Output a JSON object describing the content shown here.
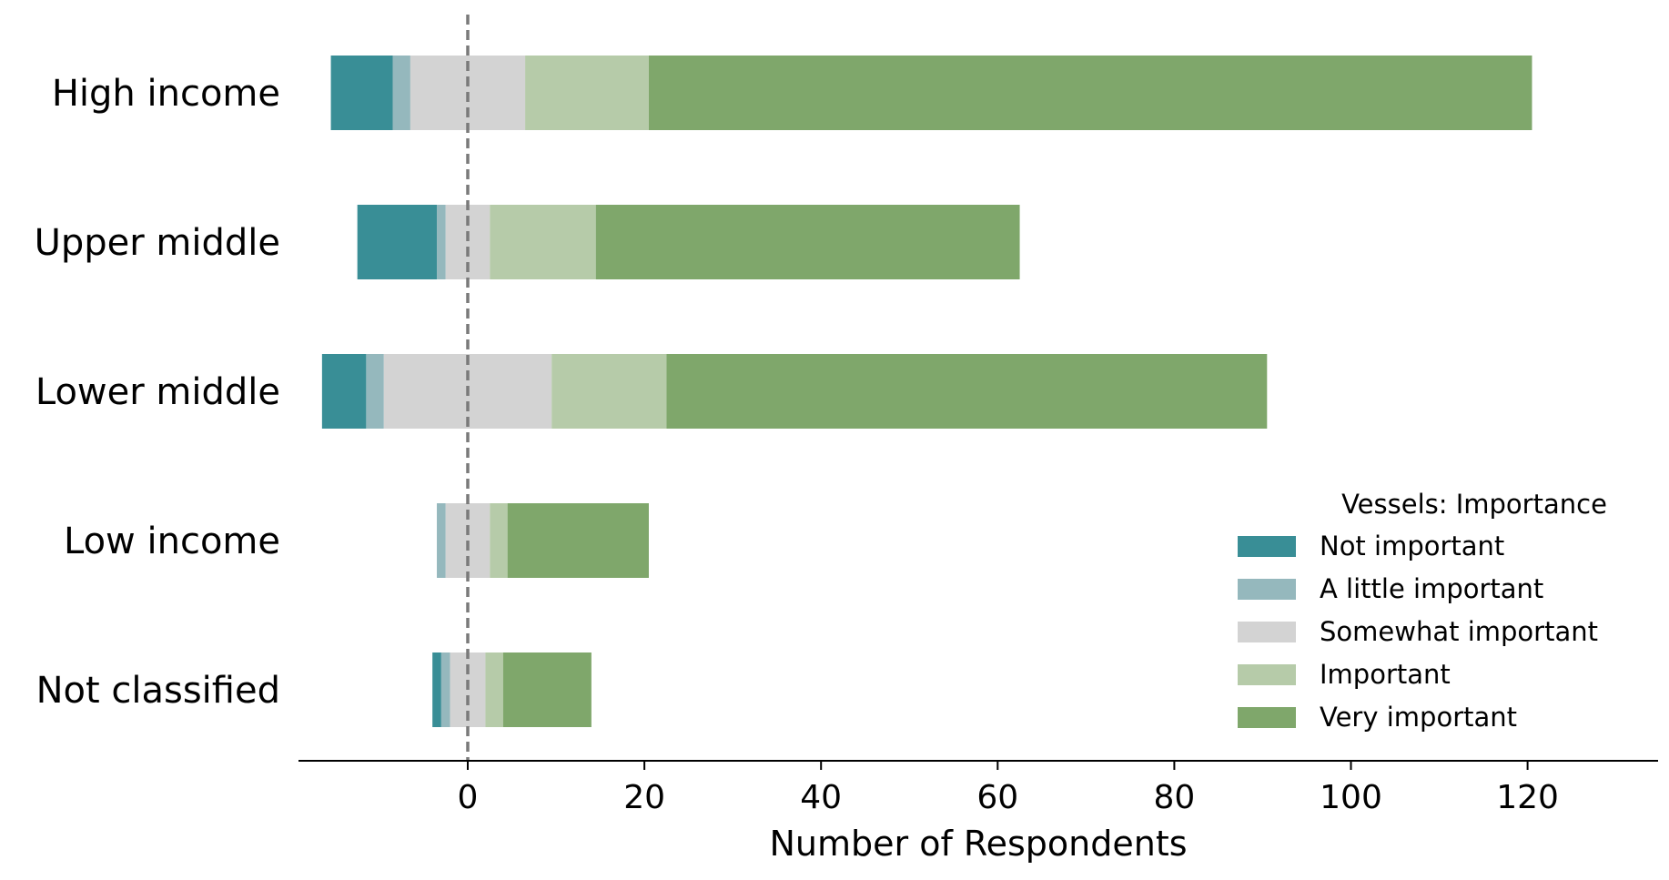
{
  "chart_data": {
    "type": "bar",
    "orientation": "horizontal",
    "stacking": "diverging-likert",
    "categories": [
      "High income",
      "Upper middle",
      "Lower middle",
      "Low income",
      "Not classified"
    ],
    "series": [
      {
        "name": "Not important",
        "color": "#398e96",
        "values": [
          7,
          9,
          5,
          0,
          1
        ]
      },
      {
        "name": "A little important",
        "color": "#95b8bd",
        "values": [
          2,
          1,
          2,
          1,
          1
        ]
      },
      {
        "name": "Somewhat important",
        "color": "#d3d3d3",
        "values": [
          13,
          5,
          19,
          5,
          4
        ]
      },
      {
        "name": "Important",
        "color": "#b6cba9",
        "values": [
          14,
          12,
          13,
          2,
          2
        ]
      },
      {
        "name": "Very important",
        "color": "#7fa76b",
        "values": [
          100,
          48,
          68,
          16,
          10
        ]
      }
    ],
    "xlabel": "Number of Respondents",
    "xticks": [
      "0",
      "20",
      "40",
      "60",
      "80",
      "100",
      "120"
    ],
    "xlim": [
      -19.5,
      134.5
    ],
    "reference_line": 0,
    "legend": {
      "title": "Vessels: Importance",
      "position": "lower-right"
    },
    "grid": false
  }
}
